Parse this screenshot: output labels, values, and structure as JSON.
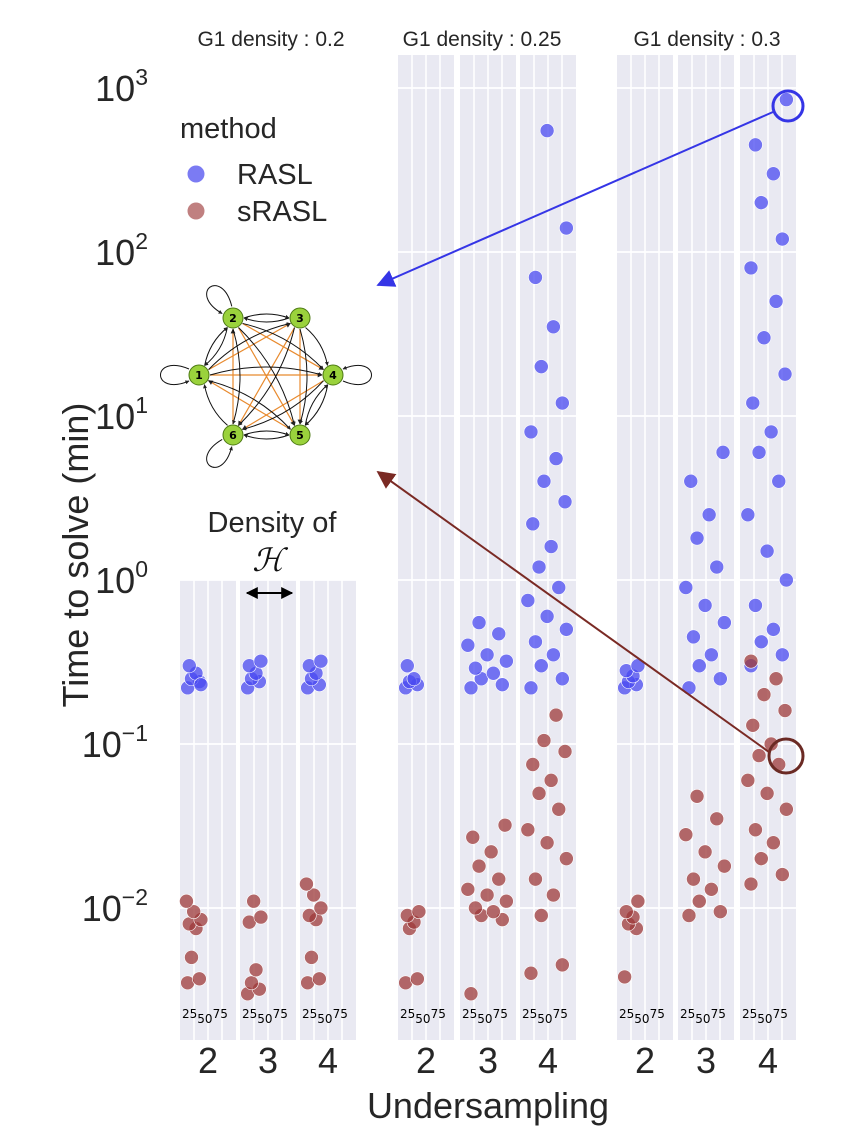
{
  "chart_data": {
    "type": "scatter",
    "ylabel": "Time to solve (min)",
    "xlabel": "Undersampling",
    "yscale": "log",
    "ylim": [
      0.0025,
      1000
    ],
    "y_ticks": [
      {
        "value": 0.01,
        "base": "10",
        "exp": "−2"
      },
      {
        "value": 0.1,
        "base": "10",
        "exp": "−1"
      },
      {
        "value": 1,
        "base": "10",
        "exp": "0"
      },
      {
        "value": 10,
        "base": "10",
        "exp": "1"
      },
      {
        "value": 100,
        "base": "10",
        "exp": "2"
      },
      {
        "value": 1000,
        "base": "10",
        "exp": "3"
      }
    ],
    "grid": true,
    "legend": {
      "title": "method",
      "placement": "top-left",
      "entries": [
        {
          "name": "RASL",
          "color": "#5a5af0"
        },
        {
          "name": "sRASL",
          "color": "#b06060"
        }
      ]
    },
    "annotation": {
      "line1": "Density of",
      "line2": "ℋ"
    },
    "density_ticks": {
      "a": "25",
      "b": "50",
      "c": "75"
    },
    "panels": [
      {
        "title": "G1 density : 0.2",
        "x_categories": [
          "2",
          "3",
          "4"
        ],
        "groups": [
          {
            "u": "2",
            "RASL": [
              0.22,
              0.24,
              0.25,
              0.27,
              0.3,
              0.23
            ],
            "sRASL": [
              0.0035,
              0.0037,
              0.005,
              0.0075,
              0.008,
              0.0085,
              0.0095,
              0.011
            ]
          },
          {
            "u": "3",
            "RASL": [
              0.22,
              0.24,
              0.25,
              0.27,
              0.3,
              0.32
            ],
            "sRASL": [
              0.003,
              0.0032,
              0.0035,
              0.0042,
              0.0082,
              0.0088,
              0.011
            ]
          },
          {
            "u": "4",
            "RASL": [
              0.22,
              0.23,
              0.25,
              0.27,
              0.3,
              0.32
            ],
            "sRASL": [
              0.0035,
              0.0037,
              0.005,
              0.0085,
              0.009,
              0.01,
              0.012,
              0.014
            ]
          }
        ]
      },
      {
        "title": "G1 density : 0.25",
        "x_categories": [
          "2",
          "3",
          "4"
        ],
        "groups": [
          {
            "u": "2",
            "RASL": [
              0.22,
              0.23,
              0.24,
              0.25,
              0.3
            ],
            "sRASL": [
              0.0035,
              0.0037,
              0.0075,
              0.0082,
              0.009,
              0.0095
            ]
          },
          {
            "u": "3",
            "RASL": [
              0.22,
              0.23,
              0.25,
              0.27,
              0.29,
              0.32,
              0.35,
              0.4,
              0.47,
              0.55
            ],
            "sRASL": [
              0.003,
              0.0085,
              0.009,
              0.0095,
              0.01,
              0.011,
              0.012,
              0.013,
              0.015,
              0.018,
              0.022,
              0.027,
              0.032
            ]
          },
          {
            "u": "4",
            "RASL": [
              0.22,
              0.25,
              0.3,
              0.35,
              0.42,
              0.5,
              0.6,
              0.75,
              0.9,
              1.2,
              1.6,
              2.2,
              3,
              4,
              5.5,
              8,
              12,
              20,
              35,
              70,
              140,
              550
            ],
            "sRASL": [
              0.004,
              0.0045,
              0.009,
              0.012,
              0.015,
              0.02,
              0.025,
              0.03,
              0.04,
              0.05,
              0.06,
              0.075,
              0.09,
              0.105,
              0.15
            ]
          }
        ]
      },
      {
        "title": "G1 density : 0.3",
        "x_categories": [
          "2",
          "3",
          "4"
        ],
        "groups": [
          {
            "u": "2",
            "RASL": [
              0.22,
              0.23,
              0.24,
              0.26,
              0.28,
              0.3
            ],
            "sRASL": [
              0.0038,
              0.0075,
              0.008,
              0.0088,
              0.0095,
              0.011
            ]
          },
          {
            "u": "3",
            "RASL": [
              0.22,
              0.25,
              0.3,
              0.35,
              0.45,
              0.55,
              0.7,
              0.9,
              1.2,
              1.8,
              2.5,
              4,
              6
            ],
            "sRASL": [
              0.009,
              0.0095,
              0.011,
              0.013,
              0.015,
              0.018,
              0.022,
              0.028,
              0.035,
              0.048
            ]
          },
          {
            "u": "4",
            "RASL": [
              0.3,
              0.35,
              0.42,
              0.5,
              0.7,
              1,
              1.5,
              2.5,
              4,
              6,
              8,
              12,
              18,
              30,
              50,
              80,
              120,
              200,
              300,
              450,
              850
            ],
            "sRASL": [
              0.014,
              0.016,
              0.02,
              0.025,
              0.03,
              0.04,
              0.05,
              0.06,
              0.075,
              0.085,
              0.1,
              0.13,
              0.16,
              0.2,
              0.25,
              0.32
            ]
          }
        ]
      }
    ]
  }
}
